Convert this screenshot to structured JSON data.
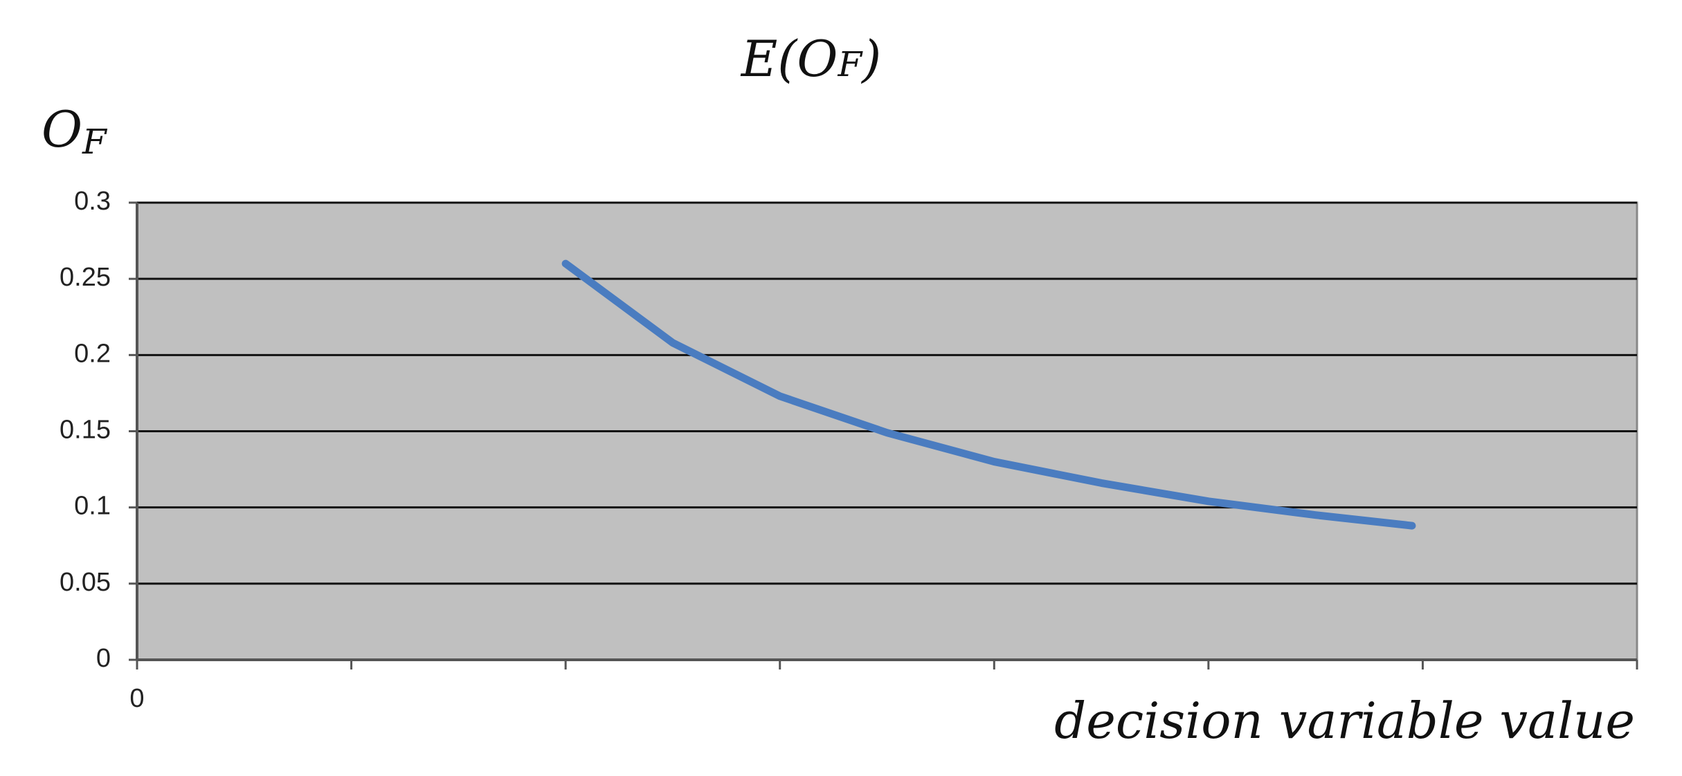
{
  "chart_data": {
    "type": "line",
    "title_parts": [
      "E(O",
      "F",
      ")"
    ],
    "y_label_parts": [
      "O",
      "F"
    ],
    "x_label": "decision variable value",
    "x": [
      2,
      2.5,
      3,
      3.5,
      4,
      4.5,
      5,
      5.5,
      5.95
    ],
    "series": [
      {
        "color": "#4a7cc0",
        "values": [
          0.26,
          0.208,
          0.173,
          0.149,
          0.13,
          0.116,
          0.104,
          0.095,
          0.088
        ]
      }
    ],
    "xlim": [
      0,
      7
    ],
    "xticks": [
      0,
      {
        "value": 1,
        "label": null
      },
      {
        "value": 2,
        "label": null
      },
      {
        "value": 3,
        "label": null
      },
      {
        "value": 4,
        "label": null
      },
      {
        "value": 5,
        "label": null
      },
      {
        "value": 6,
        "label": null
      },
      {
        "value": 7,
        "label": null
      }
    ],
    "ylim": [
      0,
      0.3
    ],
    "yticks": [
      0,
      0.05,
      0.1,
      0.15,
      0.2,
      0.25,
      0.3
    ],
    "grid": true,
    "plot_background": "#c0c0c0"
  }
}
